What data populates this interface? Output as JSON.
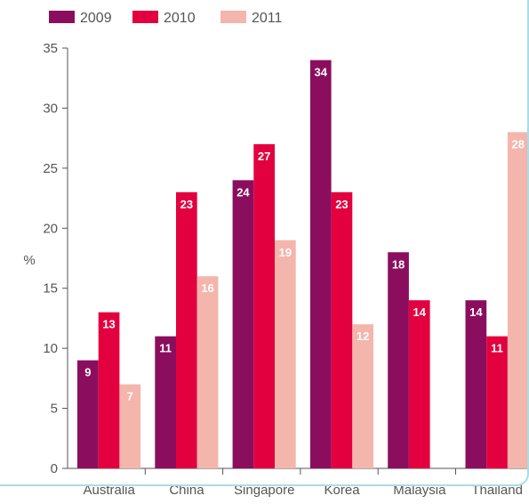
{
  "chart_data": {
    "type": "bar",
    "title": "",
    "xlabel": "",
    "ylabel": "%",
    "ylim": [
      0,
      35
    ],
    "yticks": [
      "0",
      "5",
      "10",
      "15",
      "20",
      "25",
      "30",
      "35"
    ],
    "categories": [
      "Australia",
      "China",
      "Singapore",
      "Korea",
      "Malaysia",
      "Thailand"
    ],
    "series": [
      {
        "name": "2009",
        "color": "#8b0e5e",
        "values": [
          9,
          11,
          24,
          34,
          18,
          14
        ]
      },
      {
        "name": "2010",
        "color": "#e3003f",
        "values": [
          13,
          23,
          27,
          23,
          14,
          11
        ]
      },
      {
        "name": "2011",
        "color": "#f4b5ac",
        "values": [
          7,
          16,
          19,
          12,
          null,
          28
        ]
      }
    ],
    "data_labels": [
      [
        "9",
        "11",
        "24",
        "34",
        "18",
        "14"
      ],
      [
        "13",
        "23",
        "27",
        "23",
        "14",
        "11"
      ],
      [
        "7",
        "16",
        "19",
        "12",
        "",
        "28"
      ]
    ],
    "legend_position": "top-left",
    "grid": false
  }
}
